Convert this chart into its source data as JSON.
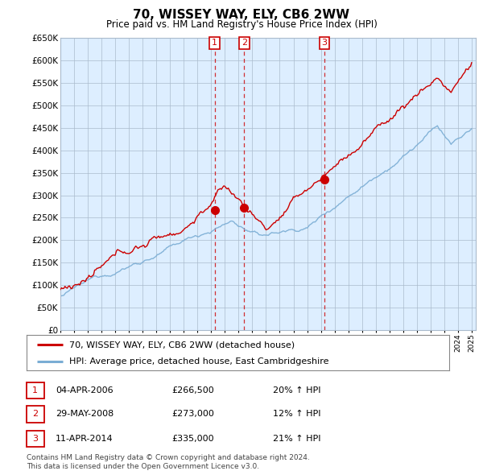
{
  "title": "70, WISSEY WAY, ELY, CB6 2WW",
  "subtitle": "Price paid vs. HM Land Registry's House Price Index (HPI)",
  "legend_line1": "70, WISSEY WAY, ELY, CB6 2WW (detached house)",
  "legend_line2": "HPI: Average price, detached house, East Cambridgeshire",
  "transactions": [
    {
      "num": 1,
      "date": "04-APR-2006",
      "price": "£266,500",
      "change": "20% ↑ HPI",
      "year": 2006.25
    },
    {
      "num": 2,
      "date": "29-MAY-2008",
      "price": "£273,000",
      "change": "12% ↑ HPI",
      "year": 2008.4
    },
    {
      "num": 3,
      "date": "11-APR-2014",
      "price": "£335,000",
      "change": "21% ↑ HPI",
      "year": 2014.25
    }
  ],
  "trans_values": [
    266500,
    273000,
    335000
  ],
  "footer_line1": "Contains HM Land Registry data © Crown copyright and database right 2024.",
  "footer_line2": "This data is licensed under the Open Government Licence v3.0.",
  "ylim": [
    0,
    650000
  ],
  "yticks": [
    0,
    50000,
    100000,
    150000,
    200000,
    250000,
    300000,
    350000,
    400000,
    450000,
    500000,
    550000,
    600000,
    650000
  ],
  "red_color": "#cc0000",
  "blue_color": "#7aadd4",
  "plot_bg_color": "#ddeeff",
  "background_color": "#ffffff",
  "grid_color": "#aabbcc"
}
